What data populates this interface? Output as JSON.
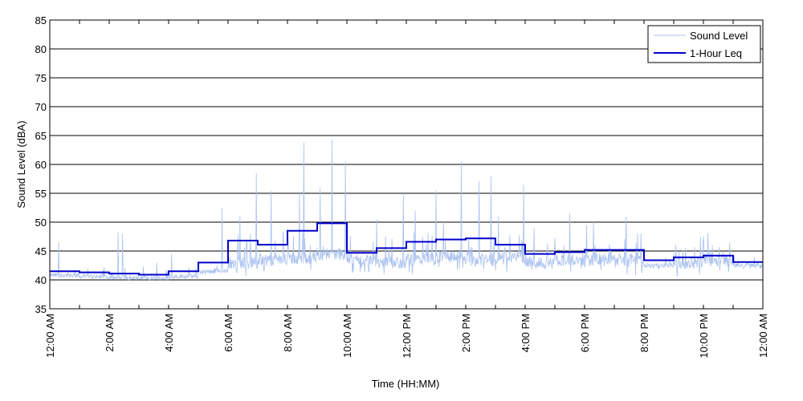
{
  "chart_data": {
    "type": "line",
    "xlabel": "Time (HH:MM)",
    "ylabel": "Sound Level (dBA)",
    "xlim": [
      0,
      24
    ],
    "ylim": [
      35,
      85
    ],
    "grid": "horizontal",
    "legend_position": "top-right",
    "x_tick_labels": [
      "12:00 AM",
      "2:00 AM",
      "4:00 AM",
      "6:00 AM",
      "8:00 AM",
      "10:00 AM",
      "12:00 PM",
      "2:00 PM",
      "4:00 PM",
      "6:00 PM",
      "8:00 PM",
      "10:00 PM",
      "12:00 AM"
    ],
    "x_tick_values": [
      0,
      2,
      4,
      6,
      8,
      10,
      12,
      14,
      16,
      18,
      20,
      22,
      24
    ],
    "y_ticks": [
      35,
      40,
      45,
      50,
      55,
      60,
      65,
      70,
      75,
      80,
      85
    ],
    "series": [
      {
        "name": "Sound Level",
        "color": "#a8c0f0",
        "hourly_baseline": [
          40.8,
          40.6,
          40.4,
          40.3,
          40.6,
          41.5,
          43.0,
          43.5,
          43.8,
          44.5,
          43.5,
          43.0,
          43.5,
          44.0,
          43.5,
          44.0,
          43.0,
          43.5,
          43.5,
          43.5,
          42.5,
          43.0,
          43.5,
          42.5
        ],
        "peaks": [
          {
            "x": 0.3,
            "y": 46.5
          },
          {
            "x": 2.3,
            "y": 48.2
          },
          {
            "x": 2.45,
            "y": 48.0
          },
          {
            "x": 3.6,
            "y": 43.0
          },
          {
            "x": 4.1,
            "y": 44.5
          },
          {
            "x": 5.8,
            "y": 52.5
          },
          {
            "x": 6.4,
            "y": 51.0
          },
          {
            "x": 6.95,
            "y": 58.5
          },
          {
            "x": 7.45,
            "y": 55.5
          },
          {
            "x": 8.55,
            "y": 63.8
          },
          {
            "x": 8.4,
            "y": 55.0
          },
          {
            "x": 9.1,
            "y": 56.0
          },
          {
            "x": 9.5,
            "y": 64.3
          },
          {
            "x": 9.95,
            "y": 60.5
          },
          {
            "x": 11.0,
            "y": 50.5
          },
          {
            "x": 11.9,
            "y": 55.0
          },
          {
            "x": 12.3,
            "y": 52.0
          },
          {
            "x": 13.0,
            "y": 55.5
          },
          {
            "x": 13.25,
            "y": 50.0
          },
          {
            "x": 13.85,
            "y": 60.5
          },
          {
            "x": 14.45,
            "y": 57.0
          },
          {
            "x": 14.85,
            "y": 58.0
          },
          {
            "x": 15.1,
            "y": 51.0
          },
          {
            "x": 15.95,
            "y": 56.5
          },
          {
            "x": 16.3,
            "y": 49.0
          },
          {
            "x": 17.5,
            "y": 51.5
          },
          {
            "x": 18.3,
            "y": 50.0
          },
          {
            "x": 19.4,
            "y": 51.0
          },
          {
            "x": 19.9,
            "y": 48.0
          },
          {
            "x": 21.9,
            "y": 47.5
          },
          {
            "x": 22.3,
            "y": 46.0
          }
        ]
      },
      {
        "name": "1-Hour Leq",
        "color": "#0000cc",
        "hourly_values": [
          41.5,
          41.3,
          41.1,
          40.9,
          41.5,
          43.0,
          46.8,
          46.1,
          48.5,
          49.8,
          44.7,
          45.5,
          46.6,
          47.0,
          47.2,
          46.1,
          44.5,
          44.8,
          45.2,
          45.2,
          43.4,
          43.9,
          44.2,
          43.1
        ]
      }
    ]
  }
}
